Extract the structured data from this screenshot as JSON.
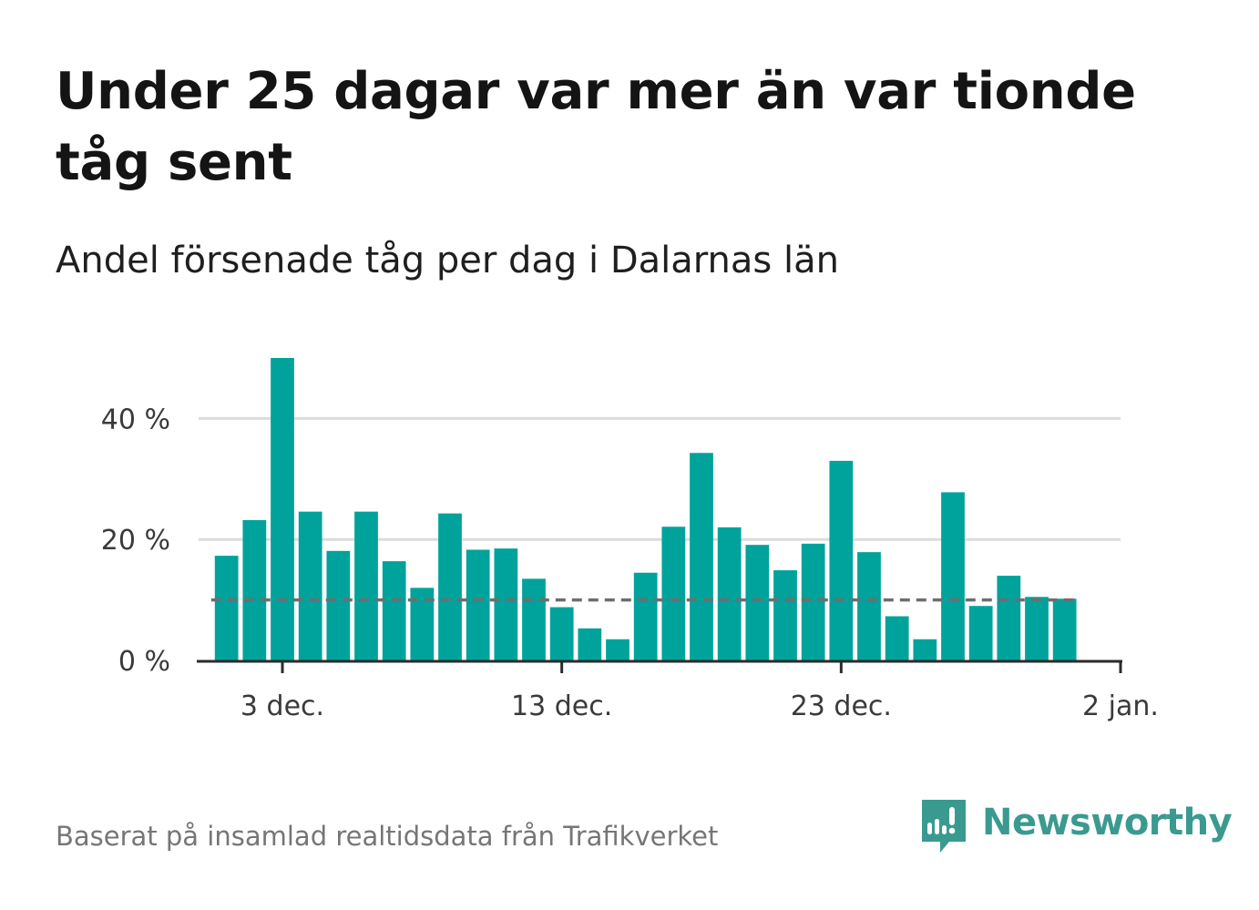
{
  "header": {
    "title": "Under 25 dagar var mer än var tionde tåg sent",
    "subtitle": "Andel försenade tåg per dag i Dalarnas län"
  },
  "footer": {
    "source": "Baserat på insamlad realtidsdata från Trafikverket",
    "brand": "Newsworthy",
    "brand_icon": "newsworthy-logo-icon"
  },
  "colors": {
    "bar": "#00a39b",
    "reference_line": "#6e6e6e",
    "grid": "#dcdcdc",
    "axis": "#2b2b2b",
    "brand": "#3a9a90"
  },
  "chart_data": {
    "type": "bar",
    "title": "Under 25 dagar var mer än var tionde tåg sent",
    "subtitle": "Andel försenade tåg per dag i Dalarnas län",
    "xlabel": "",
    "ylabel": "",
    "x": [
      "2020-12-01",
      "2020-12-02",
      "2020-12-03",
      "2020-12-04",
      "2020-12-05",
      "2020-12-06",
      "2020-12-07",
      "2020-12-08",
      "2020-12-09",
      "2020-12-10",
      "2020-12-11",
      "2020-12-12",
      "2020-12-13",
      "2020-12-14",
      "2020-12-15",
      "2020-12-16",
      "2020-12-17",
      "2020-12-18",
      "2020-12-19",
      "2020-12-20",
      "2020-12-21",
      "2020-12-22",
      "2020-12-23",
      "2020-12-24",
      "2020-12-25",
      "2020-12-26",
      "2020-12-27",
      "2020-12-28",
      "2020-12-29",
      "2020-12-30",
      "2020-12-31"
    ],
    "values": [
      17.3,
      23.2,
      50.0,
      24.6,
      18.1,
      24.6,
      16.4,
      12.0,
      24.3,
      18.3,
      18.5,
      13.5,
      8.8,
      5.3,
      3.5,
      14.5,
      22.1,
      34.3,
      22.0,
      19.1,
      14.9,
      19.3,
      33.0,
      17.9,
      7.3,
      3.5,
      27.8,
      9.0,
      14.0,
      10.5,
      10.2
    ],
    "reference_line": 10,
    "ylim": [
      0,
      50
    ],
    "yticks": [
      0,
      20,
      40
    ],
    "ytick_labels": [
      "0 %",
      "20 %",
      "40 %"
    ],
    "xlim": [
      "2020-11-30",
      "2021-01-02"
    ],
    "xticks": [
      "2020-12-03",
      "2020-12-13",
      "2020-12-23",
      "2021-01-02"
    ],
    "xtick_labels": [
      "3 dec.",
      "13 dec.",
      "23 dec.",
      "2 jan."
    ],
    "grid": true,
    "legend": "none"
  }
}
